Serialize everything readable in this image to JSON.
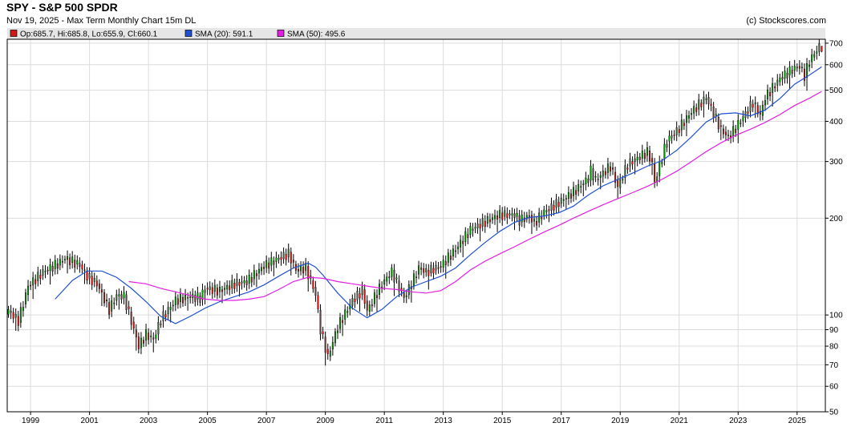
{
  "header": {
    "title": "SPY - S&P 500 SPDR",
    "subtitle": "Nov 19, 2025 - Max Term Monthly Chart 15m DL",
    "credit": "(c) Stockscores.com"
  },
  "colors": {
    "price_up": "#0b9a0b",
    "price_down": "#d01818",
    "sma20": "#2050d0",
    "sma50": "#e020e0",
    "legend_bg": "#e6e6e6",
    "grid": "#dcdcdc"
  },
  "chart_data": {
    "type": "candlestick",
    "title": "SPY - S&P 500 SPDR",
    "y_scale": "log",
    "ylim": [
      50,
      720
    ],
    "xlim": [
      "1998-04",
      "2025-12"
    ],
    "y_ticks": [
      50,
      60,
      70,
      80,
      90,
      100,
      200,
      300,
      400,
      500,
      600,
      700
    ],
    "x_ticks": [
      "1999",
      "2001",
      "2003",
      "2005",
      "2007",
      "2009",
      "2011",
      "2013",
      "2015",
      "2017",
      "2019",
      "2021",
      "2023",
      "2025"
    ],
    "grid": true,
    "legend": {
      "placement": "top",
      "entries": [
        {
          "label": "Op:685.7, Hi:685.8, Lo:655.9, Cl:660.1",
          "color": "#d01818"
        },
        {
          "label": "SMA (20): 591.1",
          "color": "#2050d0"
        },
        {
          "label": "SMA (50): 495.6",
          "color": "#e020e0"
        }
      ]
    },
    "last_bar": {
      "open": 685.7,
      "high": 685.8,
      "low": 655.9,
      "close": 660.1
    },
    "series": [
      {
        "name": "Close",
        "points": [
          [
            "1998-04",
            103
          ],
          [
            "1998-08",
            96
          ],
          [
            "1998-12",
            123
          ],
          [
            "1999-06",
            136
          ],
          [
            "1999-12",
            144
          ],
          [
            "2000-03",
            150
          ],
          [
            "2000-09",
            143
          ],
          [
            "2000-12",
            132
          ],
          [
            "2001-04",
            125
          ],
          [
            "2001-09",
            104
          ],
          [
            "2001-12",
            115
          ],
          [
            "2002-03",
            114
          ],
          [
            "2002-07",
            90
          ],
          [
            "2002-09",
            80
          ],
          [
            "2002-12",
            87
          ],
          [
            "2003-03",
            84
          ],
          [
            "2003-06",
            97
          ],
          [
            "2003-12",
            111
          ],
          [
            "2004-06",
            114
          ],
          [
            "2004-10",
            113
          ],
          [
            "2004-12",
            121
          ],
          [
            "2005-06",
            119
          ],
          [
            "2005-12",
            125
          ],
          [
            "2006-05",
            127
          ],
          [
            "2006-12",
            142
          ],
          [
            "2007-06",
            150
          ],
          [
            "2007-10",
            155
          ],
          [
            "2008-01",
            138
          ],
          [
            "2008-05",
            140
          ],
          [
            "2008-09",
            116
          ],
          [
            "2008-11",
            90
          ],
          [
            "2009-02",
            74
          ],
          [
            "2009-06",
            92
          ],
          [
            "2009-12",
            111
          ],
          [
            "2010-04",
            119
          ],
          [
            "2010-06",
            103
          ],
          [
            "2010-12",
            125
          ],
          [
            "2011-04",
            136
          ],
          [
            "2011-09",
            113
          ],
          [
            "2011-12",
            125
          ],
          [
            "2012-03",
            140
          ],
          [
            "2012-06",
            136
          ],
          [
            "2012-12",
            142
          ],
          [
            "2013-06",
            160
          ],
          [
            "2013-12",
            184
          ],
          [
            "2014-06",
            195
          ],
          [
            "2014-12",
            205
          ],
          [
            "2015-06",
            205
          ],
          [
            "2015-08",
            197
          ],
          [
            "2015-12",
            203
          ],
          [
            "2016-02",
            193
          ],
          [
            "2016-06",
            209
          ],
          [
            "2016-12",
            224
          ],
          [
            "2017-06",
            241
          ],
          [
            "2017-12",
            266
          ],
          [
            "2018-01",
            281
          ],
          [
            "2018-03",
            263
          ],
          [
            "2018-09",
            290
          ],
          [
            "2018-12",
            250
          ],
          [
            "2019-04",
            294
          ],
          [
            "2019-12",
            321
          ],
          [
            "2020-02",
            296
          ],
          [
            "2020-03",
            258
          ],
          [
            "2020-08",
            349
          ],
          [
            "2020-12",
            373
          ],
          [
            "2021-06",
            428
          ],
          [
            "2021-12",
            474
          ],
          [
            "2022-06",
            377
          ],
          [
            "2022-09",
            357
          ],
          [
            "2022-12",
            382
          ],
          [
            "2023-07",
            458
          ],
          [
            "2023-10",
            418
          ],
          [
            "2023-12",
            475
          ],
          [
            "2024-06",
            544
          ],
          [
            "2024-12",
            586
          ],
          [
            "2025-02",
            594
          ],
          [
            "2025-04",
            555
          ],
          [
            "2025-06",
            617
          ],
          [
            "2025-10",
            682
          ],
          [
            "2025-11",
            660.1
          ]
        ]
      },
      {
        "name": "SMA (20)",
        "points": [
          [
            "1999-11",
            112
          ],
          [
            "2000-06",
            128
          ],
          [
            "2000-12",
            137
          ],
          [
            "2001-06",
            137
          ],
          [
            "2001-12",
            131
          ],
          [
            "2002-06",
            121
          ],
          [
            "2002-12",
            110
          ],
          [
            "2003-06",
            99
          ],
          [
            "2003-12",
            94
          ],
          [
            "2004-06",
            99
          ],
          [
            "2004-12",
            105
          ],
          [
            "2005-06",
            110
          ],
          [
            "2005-12",
            114
          ],
          [
            "2006-06",
            118
          ],
          [
            "2006-12",
            124
          ],
          [
            "2007-06",
            132
          ],
          [
            "2007-12",
            140
          ],
          [
            "2008-06",
            145
          ],
          [
            "2008-09",
            141
          ],
          [
            "2008-12",
            133
          ],
          [
            "2009-06",
            117
          ],
          [
            "2009-12",
            105
          ],
          [
            "2010-06",
            98
          ],
          [
            "2010-12",
            104
          ],
          [
            "2011-06",
            114
          ],
          [
            "2011-12",
            122
          ],
          [
            "2012-06",
            127
          ],
          [
            "2012-12",
            132
          ],
          [
            "2013-06",
            140
          ],
          [
            "2013-12",
            154
          ],
          [
            "2014-06",
            168
          ],
          [
            "2014-12",
            182
          ],
          [
            "2015-06",
            194
          ],
          [
            "2015-12",
            201
          ],
          [
            "2016-06",
            203
          ],
          [
            "2016-12",
            208
          ],
          [
            "2017-06",
            218
          ],
          [
            "2017-12",
            236
          ],
          [
            "2018-06",
            252
          ],
          [
            "2018-12",
            264
          ],
          [
            "2019-06",
            276
          ],
          [
            "2019-12",
            290
          ],
          [
            "2020-06",
            302
          ],
          [
            "2020-12",
            325
          ],
          [
            "2021-06",
            358
          ],
          [
            "2021-12",
            398
          ],
          [
            "2022-06",
            422
          ],
          [
            "2022-12",
            425
          ],
          [
            "2023-06",
            416
          ],
          [
            "2023-12",
            434
          ],
          [
            "2024-06",
            471
          ],
          [
            "2024-12",
            522
          ],
          [
            "2025-06",
            557
          ],
          [
            "2025-11",
            591.1
          ]
        ]
      },
      {
        "name": "SMA (50)",
        "points": [
          [
            "2002-05",
            127
          ],
          [
            "2002-12",
            125
          ],
          [
            "2003-06",
            121
          ],
          [
            "2003-12",
            118
          ],
          [
            "2004-06",
            115
          ],
          [
            "2004-12",
            112
          ],
          [
            "2005-06",
            111
          ],
          [
            "2005-12",
            111
          ],
          [
            "2006-06",
            112
          ],
          [
            "2006-12",
            114
          ],
          [
            "2007-06",
            120
          ],
          [
            "2007-12",
            127
          ],
          [
            "2008-06",
            131
          ],
          [
            "2008-12",
            130
          ],
          [
            "2009-06",
            127
          ],
          [
            "2009-12",
            125
          ],
          [
            "2010-06",
            123
          ],
          [
            "2010-12",
            121
          ],
          [
            "2011-06",
            120
          ],
          [
            "2011-12",
            118
          ],
          [
            "2012-06",
            117
          ],
          [
            "2012-12",
            119
          ],
          [
            "2013-06",
            127
          ],
          [
            "2013-12",
            138
          ],
          [
            "2014-06",
            147
          ],
          [
            "2014-12",
            155
          ],
          [
            "2015-06",
            163
          ],
          [
            "2015-12",
            172
          ],
          [
            "2016-06",
            181
          ],
          [
            "2016-12",
            190
          ],
          [
            "2017-06",
            200
          ],
          [
            "2017-12",
            210
          ],
          [
            "2018-06",
            220
          ],
          [
            "2018-12",
            230
          ],
          [
            "2019-06",
            240
          ],
          [
            "2019-12",
            251
          ],
          [
            "2020-06",
            264
          ],
          [
            "2020-12",
            280
          ],
          [
            "2021-06",
            300
          ],
          [
            "2021-12",
            322
          ],
          [
            "2022-06",
            343
          ],
          [
            "2022-12",
            362
          ],
          [
            "2023-06",
            378
          ],
          [
            "2023-12",
            397
          ],
          [
            "2024-06",
            420
          ],
          [
            "2024-12",
            448
          ],
          [
            "2025-06",
            472
          ],
          [
            "2025-11",
            495.6
          ]
        ]
      }
    ]
  }
}
